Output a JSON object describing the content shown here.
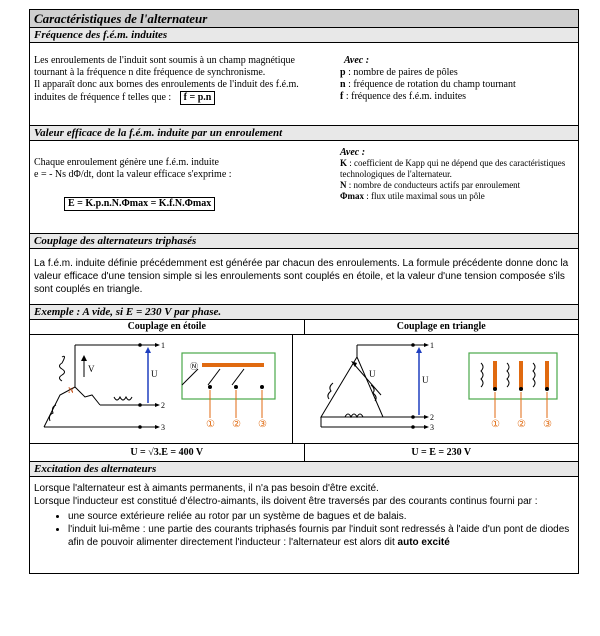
{
  "title": "Caractéristiques de l'alternateur",
  "s1": {
    "heading": "Fréquence des f.é.m. induites",
    "text1": "Les enroulements de l'induit sont soumis à un champ magnétique tournant à la fréquence n dite fréquence de synchronisme.",
    "text2": "Il apparaît donc aux bornes des enroulements de l'induit des f.é.m. induites de fréquence f telles que :",
    "formula": "f = p.n",
    "avec": "Avec :",
    "defs": [
      {
        "sym": "p",
        "txt": " : nombre de paires de pôles"
      },
      {
        "sym": "n",
        "txt": " : fréquence de rotation du champ tournant"
      },
      {
        "sym": "f",
        "txt": " : fréquence des f.é.m. induites"
      }
    ]
  },
  "s2": {
    "heading": "Valeur efficace de la f.é.m. induite par un enroulement",
    "text1": "Chaque enroulement génère une f.é.m. induite",
    "text2": "e = - Ns dΦ/dt,  dont la valeur efficace s'exprime :",
    "formula": "E = K.p.n.N.Φmax = K.f.N.Φmax",
    "avec": "Avec :",
    "defs": [
      {
        "sym": "K",
        "txt": " : coefficient de Kapp qui ne dépend que des caractéristiques technologiques de l'alternateur."
      },
      {
        "sym": "N",
        "txt": " : nombre de conducteurs actifs par enroulement"
      },
      {
        "sym": "Φmax",
        "txt": " : flux utile maximal sous un pôle"
      }
    ]
  },
  "s3": {
    "heading": "Couplage des alternateurs triphasés",
    "text": "La f.é.m. induite définie précédemment est générée par chacun des enroulements. La formule précédente donne donc la valeur efficace d'une tension simple si les enroulements sont couplés en étoile, et la valeur d'une tension composée s'ils sont couplés en triangle."
  },
  "s4": {
    "heading": "Exemple : A vide, si E = 230 V par phase.",
    "col1": "Couplage en étoile",
    "col2": "Couplage en triangle",
    "res1": "U = √3.E = 400 V",
    "res2": "U = E = 230 V",
    "labels": {
      "u": "U",
      "v": "V",
      "n": "N",
      "t1": "1",
      "t2": "2",
      "t3": "3",
      "c1": "①",
      "c2": "②",
      "c3": "③",
      "cn": "Ⓝ"
    }
  },
  "s5": {
    "heading": "Excitation des alternateurs",
    "text1": "Lorsque l'alternateur est à aimants permanents, il n'a pas besoin d'être excité.",
    "text2": "Lorsque l'inducteur est constitué d'électro-aimants, ils doivent être traversés par des courants continus fourni par :",
    "bullet1": "une source extérieure reliée au rotor par un système de bagues et de balais.",
    "bullet2": "l'induit lui-même : une partie des courants triphasés fournis par l'induit sont redressés à l'aide d'un pont de diodes afin de pouvoir alimenter directement l'inducteur : l'alternateur est alors dit ",
    "bullet2_bold": "auto excité"
  },
  "colors": {
    "arrow": "#1f3fbf",
    "wire": "#e06a10",
    "terminal": "#e06a10",
    "box": "#4aa84a"
  }
}
